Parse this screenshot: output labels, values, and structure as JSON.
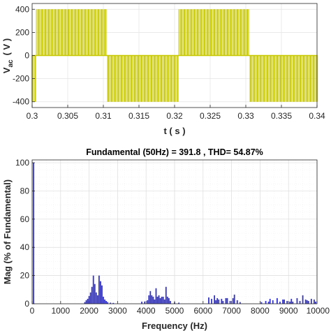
{
  "chart_data": [
    {
      "type": "line",
      "xlabel": "t ( s )",
      "ylabel_main": "V",
      "ylabel_sub": "ac",
      "ylabel_unit": "( V )",
      "xlim": [
        0.3,
        0.34
      ],
      "ylim": [
        -450,
        450
      ],
      "xticks": [
        0.3,
        0.305,
        0.31,
        0.315,
        0.32,
        0.325,
        0.33,
        0.335,
        0.34
      ],
      "xtick_labels": [
        "0.3",
        "0.305",
        "0.31",
        "0.315",
        "0.32",
        "0.325",
        "0.33",
        "0.335",
        "0.34"
      ],
      "yticks": [
        -400,
        -200,
        0,
        200,
        400
      ],
      "ytick_labels": [
        "-400",
        "-200",
        "0",
        "200",
        "400"
      ],
      "grid": true,
      "series": [
        {
          "color": "#c8c800",
          "fundamental_hz": 50,
          "amplitude": 400,
          "carrier_hz": 2150,
          "modulation": "PWM square-wave blocks, positive half 0.3005-0.3105 s, negative half 0.3105-0.3205 s"
        }
      ]
    },
    {
      "type": "bar",
      "title": "Fundamental (50Hz) = 391.8 , THD= 54.87%",
      "xlabel": "Frequency (Hz)",
      "ylabel": "Mag (% of Fundamental)",
      "xlim": [
        0,
        10000
      ],
      "ylim": [
        0,
        102
      ],
      "xticks": [
        0,
        1000,
        2000,
        3000,
        4000,
        5000,
        6000,
        7000,
        8000,
        9000,
        10000
      ],
      "xtick_labels": [
        "0",
        "1000",
        "2000",
        "3000",
        "4000",
        "5000",
        "6000",
        "7000",
        "8000",
        "9000",
        "10000"
      ],
      "yticks": [
        0,
        20,
        40,
        60,
        80,
        100
      ],
      "ytick_labels": [
        "0",
        "20",
        "40",
        "60",
        "80",
        "100"
      ],
      "grid": true,
      "color": "#3333cc",
      "bars": [
        [
          50,
          100
        ],
        [
          1850,
          1.2
        ],
        [
          1900,
          2.5
        ],
        [
          1950,
          3.5
        ],
        [
          2000,
          5.5
        ],
        [
          2050,
          8
        ],
        [
          2100,
          12
        ],
        [
          2150,
          20
        ],
        [
          2200,
          14
        ],
        [
          2250,
          8
        ],
        [
          2300,
          6
        ],
        [
          2350,
          20
        ],
        [
          2400,
          16
        ],
        [
          2450,
          13
        ],
        [
          2500,
          5
        ],
        [
          2550,
          3
        ],
        [
          2600,
          2
        ],
        [
          2650,
          1.2
        ],
        [
          2750,
          0.8
        ],
        [
          2850,
          0.6
        ],
        [
          3850,
          1.5
        ],
        [
          3950,
          1.6
        ],
        [
          4050,
          2.5
        ],
        [
          4100,
          6
        ],
        [
          4150,
          9
        ],
        [
          4200,
          6
        ],
        [
          4250,
          5
        ],
        [
          4300,
          3
        ],
        [
          4350,
          11
        ],
        [
          4400,
          5
        ],
        [
          4450,
          6
        ],
        [
          4500,
          4
        ],
        [
          4550,
          5
        ],
        [
          4600,
          5
        ],
        [
          4650,
          3
        ],
        [
          4700,
          12
        ],
        [
          4750,
          5
        ],
        [
          4800,
          4
        ],
        [
          4850,
          2
        ],
        [
          5000,
          1
        ],
        [
          5150,
          0.8
        ],
        [
          6200,
          4.5
        ],
        [
          6300,
          3.5
        ],
        [
          6400,
          6
        ],
        [
          6450,
          2.5
        ],
        [
          6500,
          4
        ],
        [
          6550,
          3
        ],
        [
          6650,
          3.5
        ],
        [
          6700,
          2
        ],
        [
          6800,
          4
        ],
        [
          6850,
          4
        ],
        [
          6950,
          2
        ],
        [
          7050,
          4
        ],
        [
          7100,
          6.5
        ],
        [
          7200,
          2.5
        ],
        [
          7300,
          1.2
        ],
        [
          8050,
          1.2
        ],
        [
          8200,
          2
        ],
        [
          8300,
          1.5
        ],
        [
          8350,
          3.5
        ],
        [
          8450,
          2.5
        ],
        [
          8600,
          4
        ],
        [
          8700,
          1.5
        ],
        [
          8800,
          3
        ],
        [
          8850,
          3
        ],
        [
          8950,
          2
        ],
        [
          9050,
          1.5
        ],
        [
          9100,
          3.5
        ],
        [
          9150,
          1.5
        ],
        [
          9300,
          4
        ],
        [
          9400,
          2
        ],
        [
          9500,
          6
        ],
        [
          9600,
          3
        ],
        [
          9650,
          2.5
        ],
        [
          9700,
          2
        ],
        [
          9800,
          3.5
        ],
        [
          9900,
          3
        ],
        [
          9950,
          1.5
        ]
      ]
    }
  ]
}
